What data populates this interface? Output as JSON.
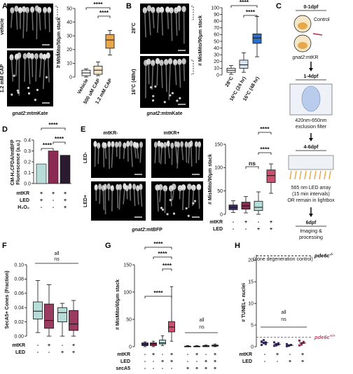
{
  "panels": {
    "A": {
      "label": "A",
      "images": {
        "top_label": "vehicle",
        "bottom_label": "1.2 mM CAP",
        "caption_gene": "gnat2",
        "caption_reporter": ":mtmKate"
      },
      "chart_data": {
        "type": "box",
        "ylabel": "# MisMito/50μm stack",
        "ylim": [
          0,
          50
        ],
        "yticks": [
          0,
          10,
          20,
          30,
          40,
          50
        ],
        "categories": [
          "Vehicle",
          "500 uM CAP",
          "1.2 mM CAP"
        ],
        "boxes": [
          {
            "min": 0,
            "q1": 1,
            "median": 3,
            "q3": 5,
            "max": 6,
            "color": "#ffffff"
          },
          {
            "min": 1,
            "q1": 2,
            "median": 5,
            "q3": 8,
            "max": 11,
            "color": "#f7e6c4"
          },
          {
            "min": 16,
            "q1": 21,
            "median": 27,
            "q3": 31,
            "max": 34,
            "color": "#e8a64d"
          }
        ],
        "significance": [
          "****",
          "****"
        ]
      }
    },
    "B": {
      "label": "B",
      "images": {
        "top_label": "28°C",
        "bottom_label": "16°C (48hr)",
        "caption_gene": "gnat2",
        "caption_reporter": ":mtmKate"
      },
      "chart_data": {
        "type": "box",
        "ylabel": "# MisMito/90μm stack",
        "ylim": [
          0,
          100
        ],
        "yticks": [
          0,
          10,
          20,
          30,
          40,
          50,
          60,
          70,
          80,
          90,
          100
        ],
        "categories": [
          "28°C",
          "16°C (24 hr)",
          "16°C (48 hr)"
        ],
        "boxes": [
          {
            "min": 1,
            "q1": 4,
            "median": 7,
            "q3": 10,
            "max": 14,
            "color": "#ffffff"
          },
          {
            "min": 4,
            "q1": 10,
            "median": 15,
            "q3": 22,
            "max": 33,
            "color": "#d4e4f4"
          },
          {
            "min": 27,
            "q1": 47,
            "median": 55,
            "q3": 61,
            "max": 87,
            "color": "#2d6fc4"
          }
        ],
        "significance": [
          "****",
          "****"
        ]
      }
    },
    "C": {
      "label": "C",
      "steps": [
        "0-1dpf",
        "1-4dpf",
        "4-6dpf",
        "6dpf"
      ],
      "control_label": "Control",
      "gene_label": "gnat2",
      "gene_suffix": ":mtKR",
      "filter_text": "420nm-650nm\nexclusion filter",
      "led_text": "565 nm LED array\n(15 min intervals)\nOR remain in lightbox",
      "final_text": "Imaging &\nprocessing"
    },
    "D": {
      "label": "D",
      "chart_data": {
        "type": "bar",
        "ylabel": "CM-H₂CFDA/mtBFP\nFluorescence (a.u.)",
        "ylim": [
          0,
          0.4
        ],
        "yticks": [
          0,
          0.1,
          0.2,
          0.3,
          0.4
        ],
        "values": [
          0.18,
          0.3,
          0.26
        ],
        "colors": [
          "#b8ddd9",
          "#8b2a52",
          "#2a1b2f"
        ],
        "row_labels": [
          "mtKR",
          "LED",
          "H₂O₂"
        ],
        "row_values": [
          [
            "+",
            "+",
            "+"
          ],
          [
            "+",
            "-",
            "+"
          ],
          [
            "-",
            "-",
            "+"
          ]
        ],
        "significance": [
          "****",
          "****",
          "****"
        ]
      }
    },
    "E": {
      "label": "E",
      "images": {
        "col1": "mtKR-",
        "col2": "mtKR+",
        "row1": "LED-",
        "row2": "LED+",
        "caption_gene": "gnat2",
        "caption_reporter": ":mtBFP"
      },
      "chart_data": {
        "type": "box",
        "ylabel": "# MisMito/90μm stack",
        "ylim": [
          0,
          150
        ],
        "yticks": [
          0,
          50,
          100,
          150
        ],
        "row_labels": [
          "mtKR",
          "LED"
        ],
        "row_values": [
          [
            "-",
            "+",
            "-",
            "+"
          ],
          [
            "-",
            "-",
            "+",
            "+"
          ]
        ],
        "boxes": [
          {
            "min": 4,
            "q1": 10,
            "median": 15,
            "q3": 20,
            "max": 29,
            "color": "#3b2c62"
          },
          {
            "min": 3,
            "q1": 11,
            "median": 18,
            "q3": 26,
            "max": 38,
            "color": "#8b2a52"
          },
          {
            "min": 0,
            "q1": 8,
            "median": 15,
            "q3": 28,
            "max": 48,
            "color": "#b8ddd9"
          },
          {
            "min": 45,
            "q1": 68,
            "median": 83,
            "q3": 95,
            "max": 108,
            "color": "#c9506e"
          }
        ],
        "significance": [
          "****",
          "ns",
          "****"
        ]
      }
    },
    "F": {
      "label": "F",
      "chart_data": {
        "type": "box",
        "ylabel": "SecA5+ Cones (Fraction)",
        "ylim": [
          0,
          0.1
        ],
        "yticks": [
          0,
          0.02,
          0.04,
          0.06,
          0.08,
          0.1
        ],
        "row_labels": [
          "mtKR",
          "LED"
        ],
        "row_values": [
          [
            "-",
            "+",
            "-",
            "+"
          ],
          [
            "-",
            "-",
            "+",
            "+"
          ]
        ],
        "boxes": [
          {
            "min": 0.005,
            "q1": 0.024,
            "median": 0.035,
            "q3": 0.048,
            "max": 0.078,
            "color": "#b8ddd9"
          },
          {
            "min": 0.0,
            "q1": 0.011,
            "median": 0.022,
            "q3": 0.045,
            "max": 0.072,
            "color": "#9b3b60"
          },
          {
            "min": 0.0,
            "q1": 0.02,
            "median": 0.033,
            "q3": 0.04,
            "max": 0.046,
            "color": "#b8ddd9"
          },
          {
            "min": 0.0,
            "q1": 0.008,
            "median": 0.017,
            "q3": 0.036,
            "max": 0.05,
            "color": "#9b3b60"
          }
        ],
        "significance": [
          "all",
          "ns"
        ]
      }
    },
    "G": {
      "label": "G",
      "chart_data": {
        "type": "box",
        "ylabel": "# MisMito/60μm stack",
        "ylim": [
          0,
          150
        ],
        "yticks": [
          0,
          50,
          100,
          150
        ],
        "row_labels": [
          "mtKR",
          "LED",
          "secA5"
        ],
        "row_values": [
          [
            "-",
            "+",
            "-",
            "+",
            "-",
            "+",
            "-",
            "+"
          ],
          [
            "-",
            "-",
            "+",
            "+",
            "-",
            "-",
            "+",
            "+"
          ],
          [
            "-",
            "-",
            "-",
            "-",
            "+",
            "+",
            "+",
            "+"
          ]
        ],
        "boxes": [
          {
            "min": 0,
            "q1": 2,
            "median": 4,
            "q3": 7,
            "max": 9,
            "color": "#3b2c62"
          },
          {
            "min": 0,
            "q1": 2,
            "median": 5,
            "q3": 7,
            "max": 10,
            "color": "#8b2a52"
          },
          {
            "min": 2,
            "q1": 5,
            "median": 7,
            "q3": 12,
            "max": 20,
            "color": "#b8ddd9"
          },
          {
            "min": 10,
            "q1": 27,
            "median": 36,
            "q3": 46,
            "max": 110,
            "color": "#c9506e"
          },
          {
            "min": 0,
            "q1": 0,
            "median": 0.5,
            "q3": 1,
            "max": 2,
            "color": "#3b2c62"
          },
          {
            "min": 0,
            "q1": 0,
            "median": 0.5,
            "q3": 1,
            "max": 2,
            "color": "#8b2a52"
          },
          {
            "min": 0,
            "q1": 0,
            "median": 1,
            "q3": 2,
            "max": 3,
            "color": "#b8ddd9"
          },
          {
            "min": 0,
            "q1": 1,
            "median": 2,
            "q3": 3,
            "max": 5,
            "color": "#c9506e"
          }
        ],
        "significance": [
          "****",
          "****",
          "****",
          "****",
          "all",
          "ns"
        ]
      }
    },
    "H": {
      "label": "H",
      "chart_data": {
        "type": "scatter",
        "ylabel": "# TUNEL+ nuclei",
        "ylim": [
          0,
          20
        ],
        "yticks": [
          0,
          5,
          10,
          15,
          20
        ],
        "row_labels": [
          "mtKR",
          "LED"
        ],
        "row_values": [
          [
            "-",
            "+",
            "-",
            "+"
          ],
          [
            "-",
            "-",
            "+",
            "+"
          ]
        ],
        "points": [
          [
            0.4,
            0.8,
            1.0,
            1.2,
            1.5,
            0.6,
            1.1,
            0.9
          ],
          [
            0.2,
            0.6,
            0.8,
            1.0,
            0.3,
            0.5
          ],
          [
            0.1,
            0.3,
            0.4,
            0.6,
            0.2
          ],
          [
            0.3,
            0.8,
            1.1,
            1.4,
            0.5,
            0.9
          ]
        ],
        "point_colors": [
          "#3b2c62",
          "#3b2c62",
          "#3b2c62",
          "#8b2a52"
        ],
        "ref_lines": [
          {
            "label": "pde6c",
            "sup": "-/-",
            "note": "(cone degeneration control)",
            "value": 21,
            "color": "#000000"
          },
          {
            "label": "pde6c",
            "sup": "+/+",
            "value": 2.2,
            "color": "#c0486a"
          }
        ],
        "significance": [
          "all",
          "ns"
        ]
      }
    }
  }
}
